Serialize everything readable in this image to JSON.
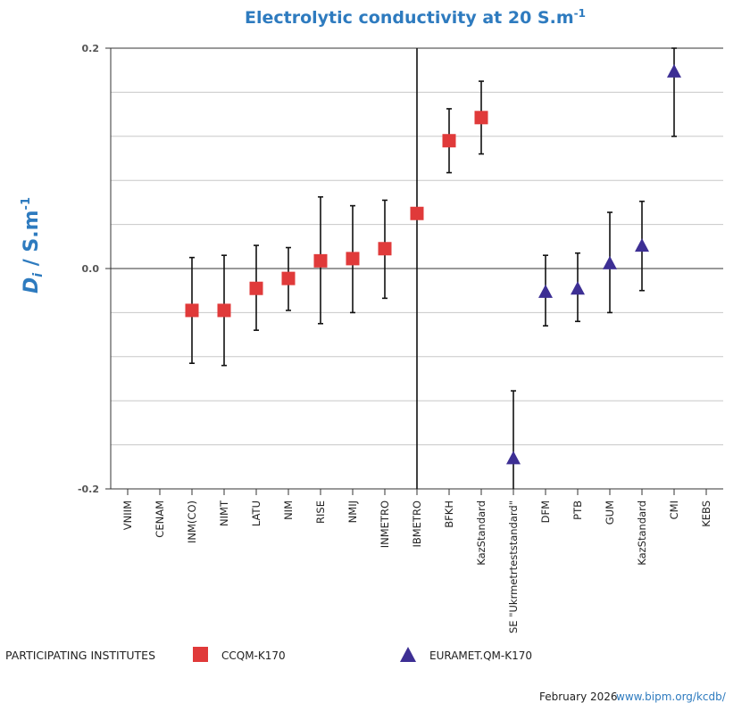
{
  "chart_data": {
    "type": "scatter",
    "title": "Electrolytic conductivity at 20 S.m",
    "title_superscript": "-1",
    "ylabel_main": "D",
    "ylabel_sub": "i",
    "ylabel_unit": " / S.m",
    "ylabel_superscript": "-1",
    "xlabel": "",
    "ylim": [
      -0.2,
      0.2
    ],
    "yticks": [
      -0.2,
      0.0,
      0.2
    ],
    "ytick_labels": [
      "-0.2",
      "0.0",
      "0.2"
    ],
    "grid": true,
    "categories": [
      "VNIIM",
      "CENAM",
      "INM(CO)",
      "NIMT",
      "LATU",
      "NIM",
      "RISE",
      "NMIJ",
      "INMETRO",
      "IBMETRO",
      "BFKH",
      "KazStandard",
      "SE \"Ukrmetrteststandard\"",
      "DFM",
      "PTB",
      "GUM",
      "KazStandard",
      "CMI",
      "KEBS"
    ],
    "divider_after_category": "IBMETRO",
    "series": [
      {
        "name": "CCQM-K170",
        "marker": "square",
        "color": "#e03a3a",
        "points": [
          {
            "category": "INM(CO)",
            "y": -0.038,
            "err_low": -0.086,
            "err_high": 0.01
          },
          {
            "category": "NIMT",
            "y": -0.038,
            "err_low": -0.088,
            "err_high": 0.012
          },
          {
            "category": "LATU",
            "y": -0.018,
            "err_low": -0.056,
            "err_high": 0.021
          },
          {
            "category": "NIM",
            "y": -0.009,
            "err_low": -0.038,
            "err_high": 0.019
          },
          {
            "category": "RISE",
            "y": 0.007,
            "err_low": -0.05,
            "err_high": 0.065
          },
          {
            "category": "NMIJ",
            "y": 0.009,
            "err_low": -0.04,
            "err_high": 0.057
          },
          {
            "category": "INMETRO",
            "y": 0.018,
            "err_low": -0.027,
            "err_high": 0.062
          },
          {
            "category": "IBMETRO",
            "y": 0.05,
            "err_low": null,
            "err_high": null
          },
          {
            "category": "BFKH",
            "y": 0.116,
            "err_low": 0.087,
            "err_high": 0.145
          },
          {
            "category": "KazStandard",
            "y": 0.137,
            "err_low": 0.104,
            "err_high": 0.17
          }
        ]
      },
      {
        "name": "EURAMET.QM-K170",
        "marker": "triangle",
        "color": "#3d2f94",
        "points": [
          {
            "category_index": 12,
            "y": -0.172,
            "err_low": -0.21,
            "err_high": -0.111
          },
          {
            "category_index": 13,
            "y": -0.021,
            "err_low": -0.052,
            "err_high": 0.012
          },
          {
            "category_index": 14,
            "y": -0.018,
            "err_low": -0.048,
            "err_high": 0.014
          },
          {
            "category_index": 15,
            "y": 0.005,
            "err_low": -0.04,
            "err_high": 0.051
          },
          {
            "category_index": 16,
            "y": 0.021,
            "err_low": -0.02,
            "err_high": 0.061
          },
          {
            "category_index": 17,
            "y": 0.179,
            "err_low": 0.12,
            "err_high": 0.2
          }
        ]
      }
    ]
  },
  "legend": {
    "title": "PARTICIPATING INSTITUTES",
    "entries": [
      {
        "label": "CCQM-K170",
        "marker": "square-icon"
      },
      {
        "label": "EURAMET.QM-K170",
        "marker": "triangle-icon"
      }
    ]
  },
  "footer": {
    "date": "February 2026",
    "link": "www.bipm.org/kcdb/"
  }
}
